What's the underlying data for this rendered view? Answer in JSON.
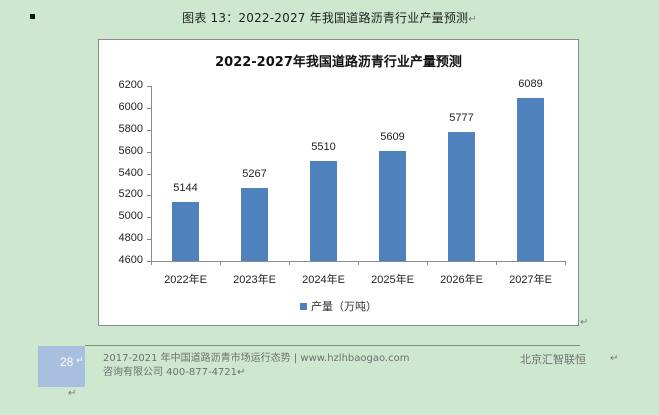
{
  "document": {
    "caption": "图表 13：2022-2027 年我国道路沥青行业产量预测",
    "paragraph_mark": "↵"
  },
  "chart_data": {
    "type": "bar",
    "title": "2022-2027年我国道路沥青行业产量预测",
    "categories": [
      "2022年E",
      "2023年E",
      "2024年E",
      "2025年E",
      "2026年E",
      "2027年E"
    ],
    "series": [
      {
        "name": "产量（万吨）",
        "values": [
          5144,
          5267,
          5510,
          5609,
          5777,
          6089
        ],
        "color": "#4f81bd"
      }
    ],
    "value_labels": [
      "5144",
      "5267",
      "5510",
      "5609",
      "5777",
      "6089"
    ],
    "xlabel": "",
    "ylabel": "",
    "ylim": [
      4600,
      6200
    ],
    "yticks": [
      "6200",
      "6000",
      "5800",
      "5600",
      "5400",
      "5200",
      "5000",
      "4800",
      "4600"
    ],
    "grid": false,
    "legend_position": "bottom",
    "legend_label": "产量（万吨）"
  },
  "footer": {
    "page_number": "28",
    "line1": "2017-2021 年中国道路沥青市场运行态势 | www.hzlhbaogao.com",
    "line2": "咨询有限公司   400-877-4721",
    "right_text": "北京汇智联恒"
  }
}
